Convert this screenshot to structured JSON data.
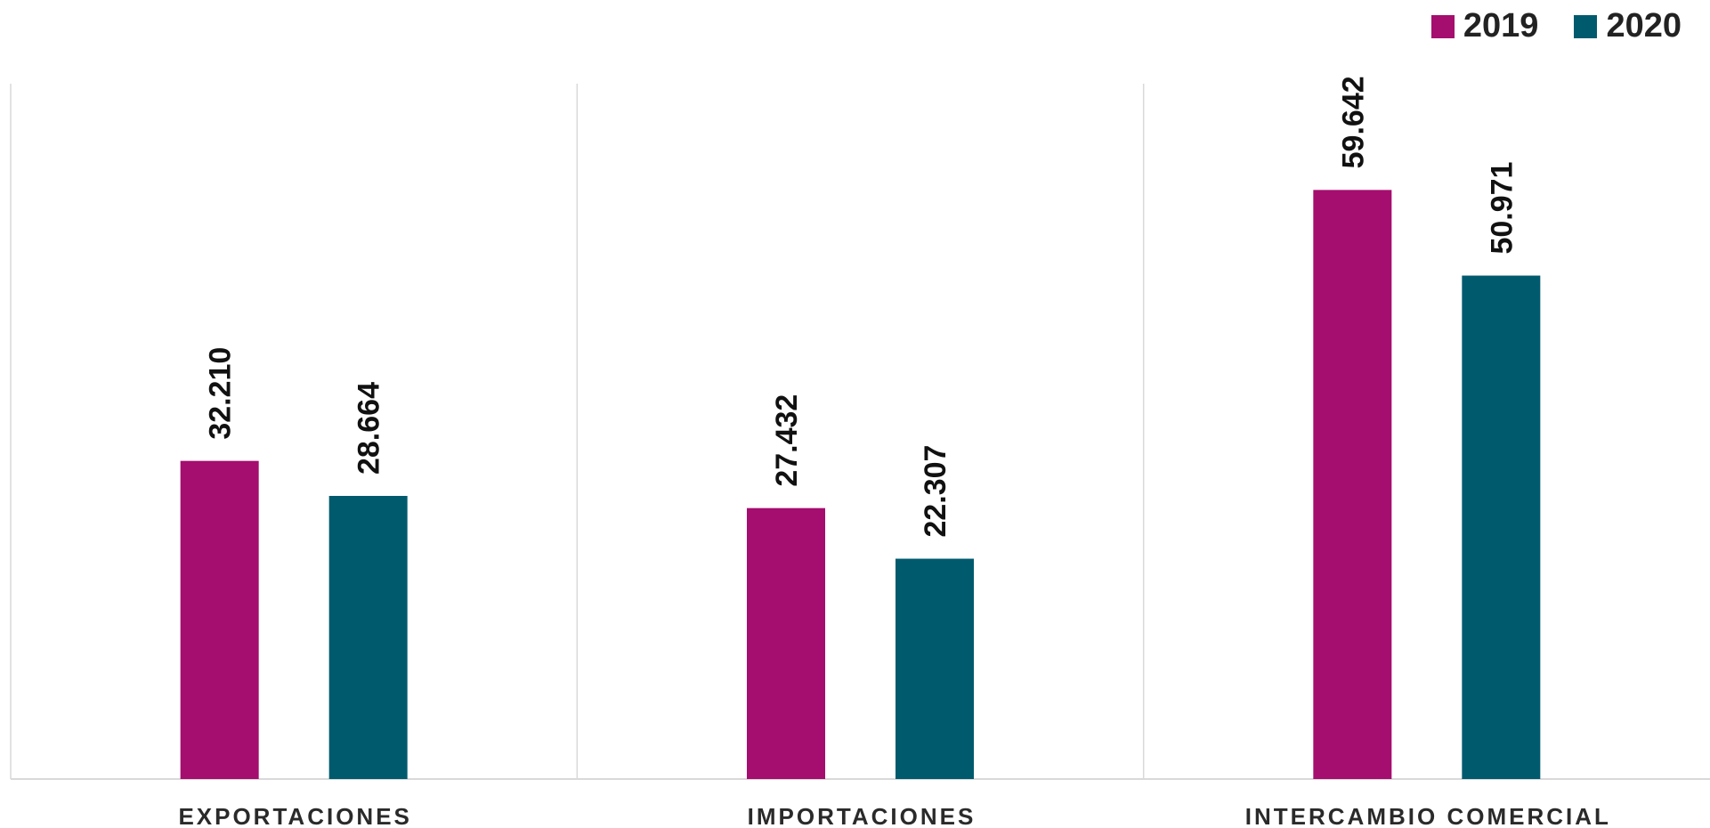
{
  "chart_data": {
    "type": "bar",
    "categories": [
      "EXPORTACIONES",
      "IMPORTACIONES",
      "INTERCAMBIO COMERCIAL"
    ],
    "series": [
      {
        "name": "2019",
        "values": [
          32210,
          27432,
          59642
        ],
        "labels": [
          "32.210",
          "27.432",
          "59.642"
        ],
        "color": "#A50D6E"
      },
      {
        "name": "2020",
        "values": [
          28664,
          22307,
          50971
        ],
        "labels": [
          "28.664",
          "22.307",
          "50.971"
        ],
        "color": "#005A6E"
      }
    ],
    "ylim": [
      0,
      70400
    ],
    "grid": false,
    "legend_position": "top-right"
  }
}
